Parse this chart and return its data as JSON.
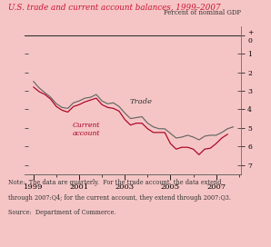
{
  "title": "U.S. trade and current account balances, 1999–2007",
  "ylabel": "Percent of nominal GDP",
  "background_color": "#f5c5c5",
  "note_line1": "Note:  The data are quarterly.  For the trade account, the data extend",
  "note_line2": "through 2007:Q4; for the current account, they extend through 2007:Q3.",
  "note_line3": "Source:  Department of Commerce.",
  "ylim": [
    -7.5,
    0.5
  ],
  "yticks": [
    0,
    -1,
    -2,
    -3,
    -4,
    -5,
    -6,
    -7
  ],
  "xlim": [
    1998.6,
    2008.1
  ],
  "xticks": [
    1999,
    2001,
    2003,
    2005,
    2007
  ],
  "trade_color": "#666666",
  "ca_color": "#aa0022",
  "trade_label": "Trade",
  "ca_label": "Current\naccount",
  "trade_x": [
    1999.0,
    1999.25,
    1999.5,
    1999.75,
    2000.0,
    2000.25,
    2000.5,
    2000.75,
    2001.0,
    2001.25,
    2001.5,
    2001.75,
    2002.0,
    2002.25,
    2002.5,
    2002.75,
    2003.0,
    2003.25,
    2003.5,
    2003.75,
    2004.0,
    2004.25,
    2004.5,
    2004.75,
    2005.0,
    2005.25,
    2005.5,
    2005.75,
    2006.0,
    2006.25,
    2006.5,
    2006.75,
    2007.0,
    2007.25,
    2007.5,
    2007.75
  ],
  "trade_y": [
    -2.5,
    -2.85,
    -3.1,
    -3.35,
    -3.7,
    -3.9,
    -3.95,
    -3.65,
    -3.55,
    -3.4,
    -3.35,
    -3.2,
    -3.55,
    -3.7,
    -3.65,
    -3.85,
    -4.2,
    -4.5,
    -4.45,
    -4.4,
    -4.75,
    -4.95,
    -5.05,
    -5.05,
    -5.3,
    -5.55,
    -5.5,
    -5.4,
    -5.5,
    -5.65,
    -5.45,
    -5.4,
    -5.4,
    -5.25,
    -5.05,
    -4.95
  ],
  "ca_x": [
    1999.0,
    1999.25,
    1999.5,
    1999.75,
    2000.0,
    2000.25,
    2000.5,
    2000.75,
    2001.0,
    2001.25,
    2001.5,
    2001.75,
    2002.0,
    2002.25,
    2002.5,
    2002.75,
    2003.0,
    2003.25,
    2003.5,
    2003.75,
    2004.0,
    2004.25,
    2004.5,
    2004.75,
    2005.0,
    2005.25,
    2005.5,
    2005.75,
    2006.0,
    2006.25,
    2006.5,
    2006.75,
    2007.0,
    2007.25,
    2007.5
  ],
  "ca_y": [
    -2.8,
    -3.05,
    -3.2,
    -3.45,
    -3.85,
    -4.05,
    -4.15,
    -3.85,
    -3.75,
    -3.6,
    -3.5,
    -3.4,
    -3.75,
    -3.9,
    -3.95,
    -4.1,
    -4.55,
    -4.85,
    -4.75,
    -4.75,
    -5.05,
    -5.25,
    -5.25,
    -5.25,
    -5.85,
    -6.15,
    -6.05,
    -6.05,
    -6.15,
    -6.45,
    -6.15,
    -6.1,
    -5.85,
    -5.55,
    -5.35
  ]
}
